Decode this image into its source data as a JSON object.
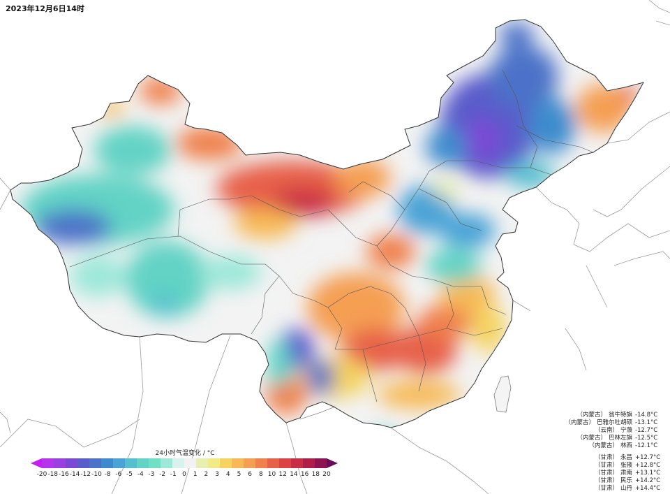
{
  "title": "2023年12月6日14时",
  "legend": {
    "title": "24小时气温变化 / °C",
    "ticks": [
      "-20",
      "-18",
      "-16",
      "-14",
      "-12",
      "-10",
      "-8",
      "-6",
      "-5",
      "-4",
      "-3",
      "-2",
      "-1",
      "0",
      "1",
      "2",
      "3",
      "4",
      "5",
      "6",
      "8",
      "10",
      "12",
      "14",
      "16",
      "18",
      "20"
    ],
    "colors": [
      "#c41ef0",
      "#b435ec",
      "#9a3fe0",
      "#7a48d4",
      "#5a5ccb",
      "#4b72c8",
      "#3c8ccd",
      "#4aa3d6",
      "#56bfcf",
      "#62d3c5",
      "#6fe0c4",
      "#9de8d9",
      "#d8f2ec",
      "#f2f2f2",
      "#e8efb0",
      "#f2ea82",
      "#f5d35e",
      "#f7b955",
      "#f59f52",
      "#f0804c",
      "#e76048",
      "#dc4242",
      "#c92d45",
      "#ad1f4a",
      "#8c1551",
      "#6a0b55"
    ]
  },
  "stations_low": [
    {
      "prov": "（内蒙古）",
      "name": "翁牛特旗",
      "value": "-14.8°C"
    },
    {
      "prov": "（内蒙古）",
      "name": "巴雅尔吐胡硕",
      "value": "-13.1°C"
    },
    {
      "prov": "（云南）",
      "name": "宁蒗",
      "value": "-12.7°C"
    },
    {
      "prov": "（内蒙古）",
      "name": "巴林左旗",
      "value": "-12.5°C"
    },
    {
      "prov": "（内蒙古）",
      "name": "林西",
      "value": "-12.1°C"
    }
  ],
  "stations_high": [
    {
      "prov": "（甘肃）",
      "name": "永昌",
      "value": "+12.7°C"
    },
    {
      "prov": "（甘肃）",
      "name": "张掖",
      "value": "+12.8°C"
    },
    {
      "prov": "（甘肃）",
      "name": "肃南",
      "value": "+13.1°C"
    },
    {
      "prov": "（甘肃）",
      "name": "民乐",
      "value": "+14.2°C"
    },
    {
      "prov": "（甘肃）",
      "name": "山丹",
      "value": "+14.4°C"
    }
  ]
}
